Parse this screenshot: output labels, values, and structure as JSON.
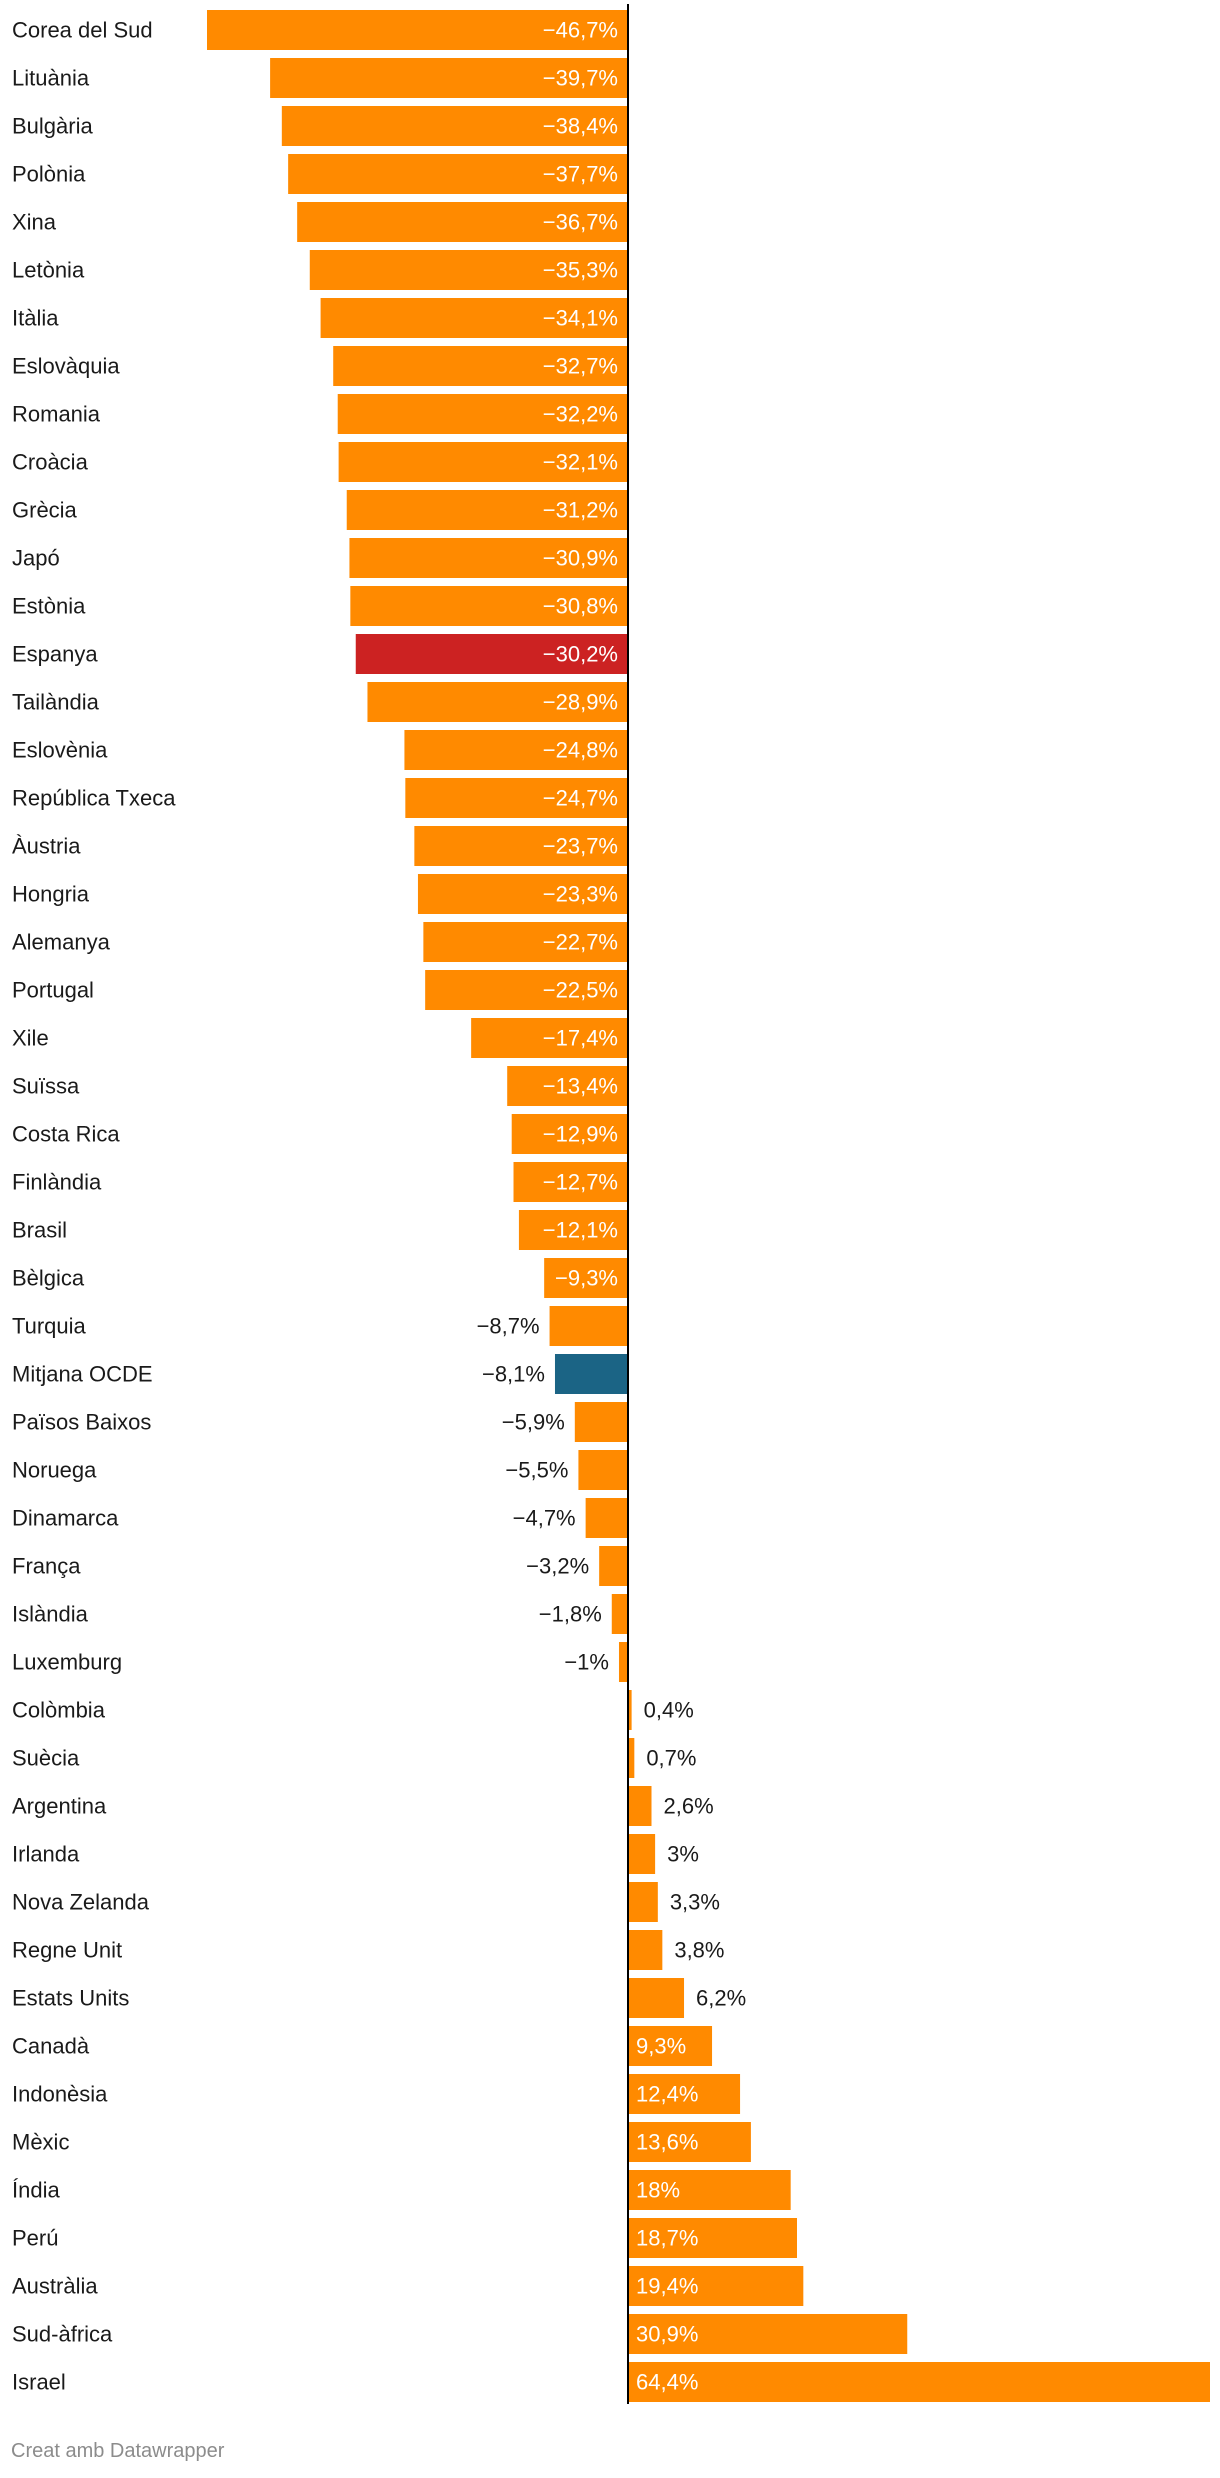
{
  "chart_data": {
    "type": "bar",
    "orientation": "horizontal",
    "title": "",
    "xlabel": "",
    "ylabel": "",
    "xlim": [
      -46.7,
      64.4
    ],
    "grid": false,
    "colors": {
      "default": "#ff8a00",
      "highlight": "#cc2222",
      "average": "#1b6485",
      "axis": "#000000",
      "label_on_bar": "#ffffff",
      "label_outside": "#1a1a1a"
    },
    "categories": [
      "Corea del Sud",
      "Lituània",
      "Bulgària",
      "Polònia",
      "Xina",
      "Letònia",
      "Itàlia",
      "Eslovàquia",
      "Romania",
      "Croàcia",
      "Grècia",
      "Japó",
      "Estònia",
      "Espanya",
      "Tailàndia",
      "Eslovènia",
      "República Txeca",
      "Àustria",
      "Hongria",
      "Alemanya",
      "Portugal",
      "Xile",
      "Suïssa",
      "Costa Rica",
      "Finlàndia",
      "Brasil",
      "Bèlgica",
      "Turquia",
      "Mitjana OCDE",
      "Països Baixos",
      "Noruega",
      "Dinamarca",
      "França",
      "Islàndia",
      "Luxemburg",
      "Colòmbia",
      "Suècia",
      "Argentina",
      "Irlanda",
      "Nova Zelanda",
      "Regne Unit",
      "Estats Units",
      "Canadà",
      "Indonèsia",
      "Mèxic",
      "Índia",
      "Perú",
      "Austràlia",
      "Sud-àfrica",
      "Israel"
    ],
    "values": [
      -46.7,
      -39.7,
      -38.4,
      -37.7,
      -36.7,
      -35.3,
      -34.1,
      -32.7,
      -32.2,
      -32.1,
      -31.2,
      -30.9,
      -30.8,
      -30.2,
      -28.9,
      -24.8,
      -24.7,
      -23.7,
      -23.3,
      -22.7,
      -22.5,
      -17.4,
      -13.4,
      -12.9,
      -12.7,
      -12.1,
      -9.3,
      -8.7,
      -8.1,
      -5.9,
      -5.5,
      -4.7,
      -3.2,
      -1.8,
      -1,
      0.4,
      0.7,
      2.6,
      3,
      3.3,
      3.8,
      6.2,
      9.3,
      12.4,
      13.6,
      18,
      18.7,
      19.4,
      30.9,
      64.4
    ],
    "value_labels": [
      "−46,7%",
      "−39,7%",
      "−38,4%",
      "−37,7%",
      "−36,7%",
      "−35,3%",
      "−34,1%",
      "−32,7%",
      "−32,2%",
      "−32,1%",
      "−31,2%",
      "−30,9%",
      "−30,8%",
      "−30,2%",
      "−28,9%",
      "−24,8%",
      "−24,7%",
      "−23,7%",
      "−23,3%",
      "−22,7%",
      "−22,5%",
      "−17,4%",
      "−13,4%",
      "−12,9%",
      "−12,7%",
      "−12,1%",
      "−9,3%",
      "−8,7%",
      "−8,1%",
      "−5,9%",
      "−5,5%",
      "−4,7%",
      "−3,2%",
      "−1,8%",
      "−1%",
      "0,4%",
      "0,7%",
      "2,6%",
      "3%",
      "3,3%",
      "3,8%",
      "6,2%",
      "9,3%",
      "12,4%",
      "13,6%",
      "18%",
      "18,7%",
      "19,4%",
      "30,9%",
      "64,4%"
    ],
    "highlight": [
      "Espanya"
    ],
    "average": [
      "Mitjana OCDE"
    ]
  },
  "footer": {
    "credit": "Creat amb Datawrapper"
  }
}
